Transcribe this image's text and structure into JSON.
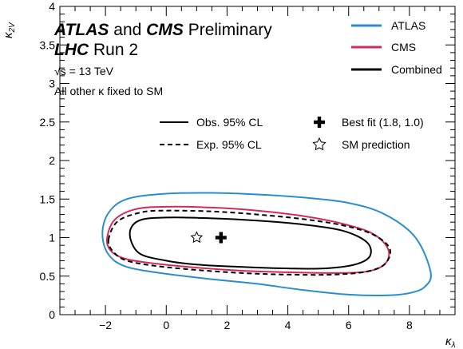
{
  "chart_data": {
    "type": "contour",
    "xlabel_main": "κ",
    "xlabel_sub": "λ",
    "ylabel_main": "κ",
    "ylabel_sub": "2V",
    "xlim": [
      -3.5,
      9.5
    ],
    "ylim": [
      0,
      4
    ],
    "xticks": [
      -2,
      0,
      2,
      4,
      6,
      8
    ],
    "yticks": [
      0,
      0.5,
      1,
      1.5,
      2,
      2.5,
      3,
      3.5,
      4
    ],
    "xtick_labels": [
      "−2",
      "0",
      "2",
      "4",
      "6",
      "8"
    ],
    "ytick_labels": [
      "0",
      "0.5",
      "1",
      "1.5",
      "2",
      "2.5",
      "3",
      "3.5",
      "4"
    ],
    "title_line1": {
      "atlas": "ATLAS",
      "and": "and",
      "cms": "CMS",
      "prelim": "Preliminary"
    },
    "title_line2": {
      "lhc": "LHC",
      "run": "Run 2"
    },
    "energy_label": "√s = 13 TeV",
    "fixed_label": "All other κ fixed to SM",
    "legend_colors": [
      {
        "name": "ATLAS",
        "color": "#2b8ccf"
      },
      {
        "name": "CMS",
        "color": "#d12b5c"
      },
      {
        "name": "Combined",
        "color": "#000000"
      }
    ],
    "legend_styles": [
      {
        "name": "Obs. 95% CL",
        "dash": "solid"
      },
      {
        "name": "Exp. 95% CL",
        "dash": "dashed"
      }
    ],
    "markers": {
      "best_fit": {
        "label": "Best fit (1.8, 1.0)",
        "x": 1.8,
        "y": 1.0
      },
      "sm": {
        "label": "SM prediction",
        "x": 1.0,
        "y": 1.0
      }
    },
    "contours": [
      {
        "series": "ATLAS",
        "kind": "obs",
        "color": "#2b8ccf",
        "dash": "solid",
        "x": [
          -2.1,
          -1.9,
          -1.3,
          0.0,
          1.5,
          3.0,
          4.5,
          6.0,
          7.2,
          8.2,
          8.7,
          8.5,
          8.0,
          7.2,
          6.0,
          4.5,
          3.0,
          1.5,
          0.0,
          -1.3,
          -1.9,
          -2.1
        ],
        "y": [
          1.05,
          1.32,
          1.5,
          1.57,
          1.58,
          1.56,
          1.52,
          1.45,
          1.3,
          1.0,
          0.55,
          0.36,
          0.28,
          0.25,
          0.26,
          0.32,
          0.4,
          0.46,
          0.53,
          0.62,
          0.78,
          1.05
        ]
      },
      {
        "series": "CMS",
        "kind": "obs",
        "color": "#d12b5c",
        "dash": "solid",
        "x": [
          -1.95,
          -1.7,
          -1.0,
          0.0,
          1.5,
          3.0,
          4.5,
          5.8,
          6.8,
          7.3,
          7.2,
          6.6,
          5.5,
          4.0,
          2.5,
          1.0,
          -0.3,
          -1.3,
          -1.8,
          -1.95
        ],
        "y": [
          0.98,
          1.23,
          1.37,
          1.4,
          1.39,
          1.35,
          1.28,
          1.18,
          1.05,
          0.85,
          0.66,
          0.56,
          0.54,
          0.55,
          0.57,
          0.61,
          0.66,
          0.72,
          0.82,
          0.98
        ]
      },
      {
        "series": "Combined",
        "kind": "exp",
        "color": "#000000",
        "dash": "dashed",
        "x": [
          -1.9,
          -1.6,
          -0.8,
          0.0,
          1.5,
          3.0,
          4.5,
          5.8,
          6.8,
          7.35,
          7.2,
          6.6,
          5.5,
          4.0,
          2.5,
          1.0,
          -0.3,
          -1.3,
          -1.75,
          -1.9
        ],
        "y": [
          0.97,
          1.21,
          1.33,
          1.35,
          1.34,
          1.3,
          1.24,
          1.16,
          1.04,
          0.86,
          0.66,
          0.56,
          0.52,
          0.52,
          0.54,
          0.58,
          0.63,
          0.7,
          0.82,
          0.97
        ]
      },
      {
        "series": "Combined",
        "kind": "obs",
        "color": "#000000",
        "dash": "solid",
        "x": [
          -1.2,
          -0.9,
          0.0,
          1.5,
          3.0,
          4.5,
          5.8,
          6.6,
          6.7,
          6.2,
          5.2,
          4.0,
          2.5,
          1.0,
          0.0,
          -0.9,
          -1.2
        ],
        "y": [
          1.05,
          1.22,
          1.26,
          1.25,
          1.22,
          1.17,
          1.09,
          0.94,
          0.76,
          0.65,
          0.6,
          0.6,
          0.62,
          0.65,
          0.7,
          0.8,
          1.05
        ]
      }
    ]
  }
}
